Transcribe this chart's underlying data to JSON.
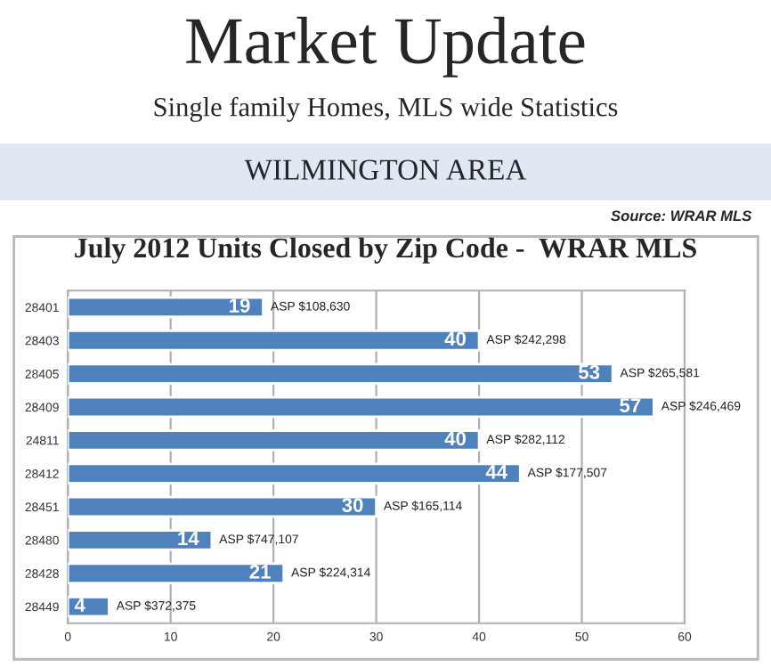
{
  "chart_data": {
    "type": "bar",
    "orientation": "horizontal",
    "title": "Market Update",
    "subtitle": "Single family Homes, MLS wide Statistics",
    "categories": [
      "28401",
      "28403",
      "28405",
      "28409",
      "24811",
      "28412",
      "28451",
      "28480",
      "28428",
      "28449"
    ],
    "values": [
      19,
      40,
      53,
      57,
      40,
      44,
      30,
      14,
      21,
      4
    ],
    "color": "#4f81bd",
    "data_labels": true,
    "xlim": [
      0,
      60
    ],
    "xticks": [
      0,
      10,
      20,
      30,
      40,
      50,
      60
    ],
    "grid": "x",
    "annotations": [
      "WILMINGTON AREA",
      "Source: WRAR MLS",
      "July 2012 Units Closed by Zip Code -  WRAR MLS",
      {
        "text": "ASP $108,630",
        "x": 19,
        "y": "28401"
      },
      {
        "text": "ASP $242,298",
        "x": 40,
        "y": "28403"
      },
      {
        "text": "ASP $265,581",
        "x": 53,
        "y": "28405"
      },
      {
        "text": "ASP $246,469",
        "x": 57,
        "y": "28409"
      },
      {
        "text": "ASP $282,112",
        "x": 40,
        "y": "24811"
      },
      {
        "text": "ASP $177,507",
        "x": 44,
        "y": "28412"
      },
      {
        "text": "ASP $165,114",
        "x": 30,
        "y": "28451"
      },
      {
        "text": "ASP $747,107",
        "x": 14,
        "y": "28480"
      },
      {
        "text": "ASP $224,314",
        "x": 21,
        "y": "28428"
      },
      {
        "text": "ASP $372,375",
        "x": 4,
        "y": "28449"
      }
    ]
  }
}
